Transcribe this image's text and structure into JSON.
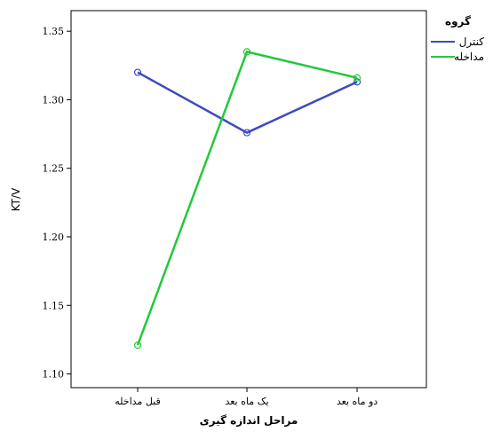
{
  "chart_data": {
    "type": "line",
    "xlabel": "مراحل اندازه گیری",
    "ylabel": "KT/V",
    "categories": [
      "قبل مداخله",
      "یک ماه بعد",
      "دو ماه بعد"
    ],
    "ylim": [
      1.09,
      1.365
    ],
    "yticks": [
      1.1,
      1.15,
      1.2,
      1.25,
      1.3,
      1.35
    ],
    "ytick_labels": [
      "1.10",
      "1.15",
      "1.20",
      "1.25",
      "1.30",
      "1.35"
    ],
    "legend": {
      "title": "گروه",
      "placement": "top-right, outside plot"
    },
    "grid": false,
    "series": [
      {
        "name": "کنترل",
        "color": "#3b4bbf",
        "values": [
          1.32,
          1.276,
          1.313
        ]
      },
      {
        "name": "مداخله",
        "color": "#22c93a",
        "values": [
          1.121,
          1.335,
          1.316
        ]
      }
    ]
  }
}
